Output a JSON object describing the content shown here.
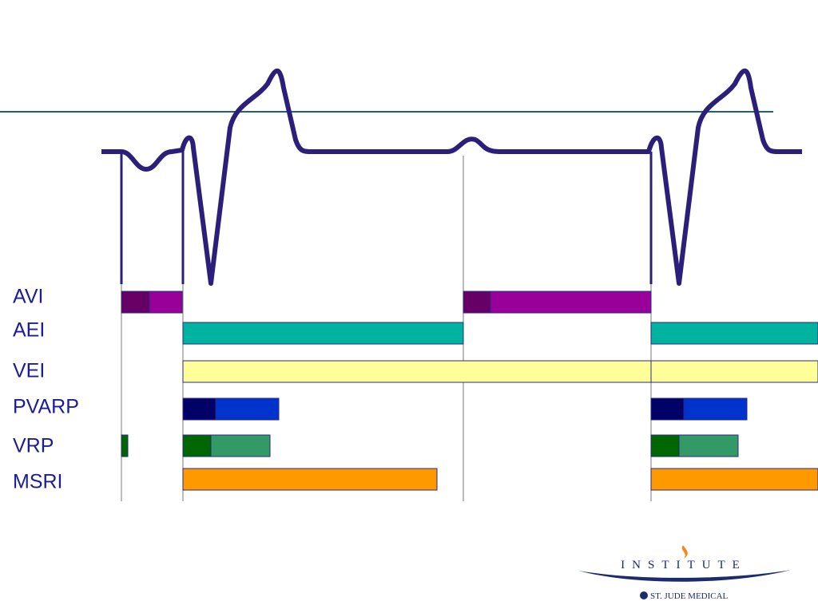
{
  "rows": [
    "AVI",
    "AEI",
    "VEI",
    "PVARP",
    "VRP",
    "MSRI"
  ],
  "logo": {
    "title": "INSTITUTE",
    "company": "ST. JUDE MEDICAL"
  }
}
